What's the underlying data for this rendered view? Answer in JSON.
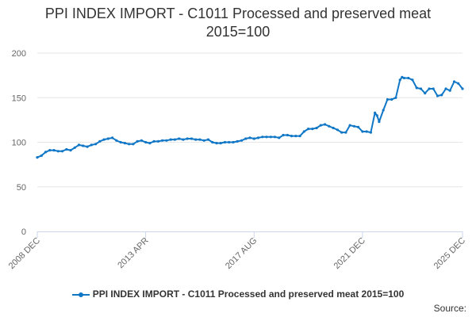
{
  "chart_data": {
    "type": "line",
    "title_line1": "PPI INDEX IMPORT - C1011 Processed and preserved meat",
    "title_line2": "2015=100",
    "xlabel": "",
    "ylabel": "",
    "ylim": [
      0,
      200
    ],
    "yticks": [
      0,
      50,
      100,
      150,
      200
    ],
    "xrange": [
      0,
      204
    ],
    "xticks": [
      {
        "label": "2008 DEC",
        "index": 0
      },
      {
        "label": "2013 APR",
        "index": 52
      },
      {
        "label": "2017 AUG",
        "index": 104
      },
      {
        "label": "2021 DEC",
        "index": 156
      },
      {
        "label": "2025 DEC",
        "index": 204
      }
    ],
    "grid": true,
    "legend_position": "bottom",
    "color": "#1077c7",
    "series": [
      {
        "name": "PPI INDEX IMPORT - C1011 Processed and preserved meat 2015=100",
        "points": [
          [
            0,
            83
          ],
          [
            2,
            85
          ],
          [
            4,
            89
          ],
          [
            6,
            91
          ],
          [
            8,
            91
          ],
          [
            10,
            90
          ],
          [
            12,
            90
          ],
          [
            14,
            92
          ],
          [
            16,
            91
          ],
          [
            18,
            94
          ],
          [
            20,
            97
          ],
          [
            22,
            96
          ],
          [
            24,
            95
          ],
          [
            26,
            97
          ],
          [
            28,
            98
          ],
          [
            30,
            101
          ],
          [
            32,
            103
          ],
          [
            34,
            104
          ],
          [
            36,
            105
          ],
          [
            38,
            102
          ],
          [
            40,
            100
          ],
          [
            42,
            99
          ],
          [
            44,
            98
          ],
          [
            46,
            98
          ],
          [
            48,
            101
          ],
          [
            50,
            102
          ],
          [
            52,
            100
          ],
          [
            54,
            99
          ],
          [
            56,
            101
          ],
          [
            58,
            101
          ],
          [
            60,
            102
          ],
          [
            62,
            102
          ],
          [
            64,
            103
          ],
          [
            66,
            103
          ],
          [
            68,
            104
          ],
          [
            70,
            103
          ],
          [
            72,
            104
          ],
          [
            74,
            104
          ],
          [
            76,
            103
          ],
          [
            78,
            103
          ],
          [
            80,
            102
          ],
          [
            82,
            103
          ],
          [
            84,
            100
          ],
          [
            86,
            99
          ],
          [
            88,
            99
          ],
          [
            90,
            100
          ],
          [
            92,
            100
          ],
          [
            94,
            100
          ],
          [
            96,
            101
          ],
          [
            98,
            102
          ],
          [
            100,
            104
          ],
          [
            102,
            105
          ],
          [
            104,
            104
          ],
          [
            106,
            105
          ],
          [
            108,
            106
          ],
          [
            110,
            106
          ],
          [
            112,
            106
          ],
          [
            114,
            106
          ],
          [
            116,
            105
          ],
          [
            118,
            108
          ],
          [
            120,
            108
          ],
          [
            122,
            107
          ],
          [
            124,
            107
          ],
          [
            126,
            107
          ],
          [
            128,
            112
          ],
          [
            130,
            115
          ],
          [
            132,
            115
          ],
          [
            134,
            116
          ],
          [
            136,
            119
          ],
          [
            138,
            120
          ],
          [
            140,
            118
          ],
          [
            142,
            116
          ],
          [
            144,
            114
          ],
          [
            146,
            111
          ],
          [
            148,
            111
          ],
          [
            150,
            119
          ],
          [
            152,
            118
          ],
          [
            154,
            117
          ],
          [
            156,
            112
          ],
          [
            158,
            112
          ],
          [
            160,
            111
          ],
          [
            162,
            133
          ],
          [
            163,
            130
          ],
          [
            164,
            123
          ],
          [
            166,
            136
          ],
          [
            168,
            148
          ],
          [
            170,
            148
          ],
          [
            172,
            150
          ],
          [
            174,
            170
          ],
          [
            175,
            173
          ],
          [
            176,
            172
          ],
          [
            178,
            172
          ],
          [
            180,
            170
          ],
          [
            182,
            161
          ],
          [
            184,
            160
          ],
          [
            186,
            155
          ],
          [
            188,
            160
          ],
          [
            190,
            160
          ],
          [
            192,
            152
          ],
          [
            194,
            153
          ],
          [
            196,
            160
          ],
          [
            198,
            158
          ],
          [
            200,
            168
          ],
          [
            202,
            166
          ],
          [
            204,
            160
          ]
        ]
      }
    ]
  },
  "source_label": "Source:"
}
